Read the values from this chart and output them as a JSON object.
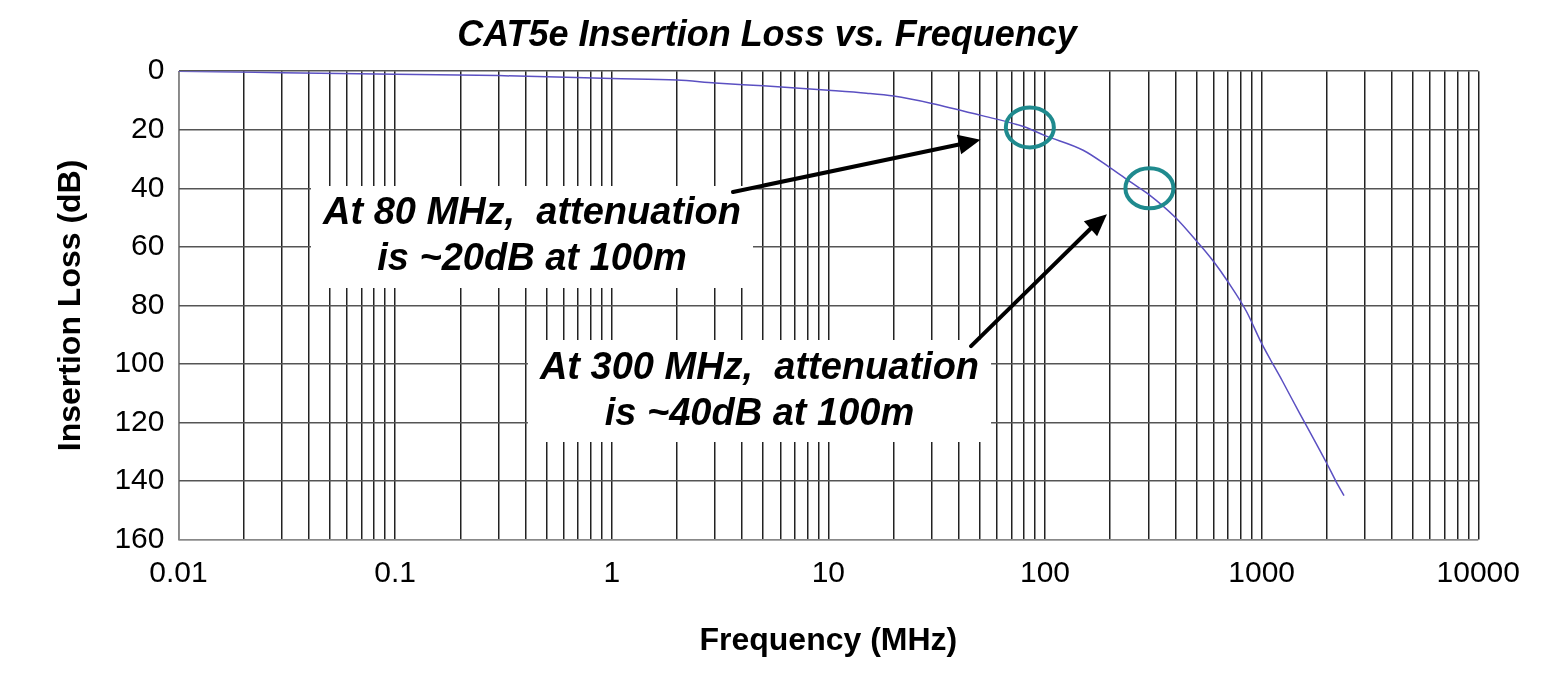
{
  "chart_data": {
    "type": "line",
    "title": "CAT5e Insertion Loss vs. Frequency",
    "xlabel": "Frequency (MHz)",
    "ylabel": "Insertion Loss (dB)",
    "x": [
      0.01,
      0.03,
      0.1,
      0.3,
      1,
      2,
      3,
      5,
      10,
      15,
      20,
      30,
      50,
      80,
      100,
      150,
      200,
      250,
      300,
      400,
      500,
      600,
      700,
      850,
      1000,
      1250,
      1500,
      1750,
      2000,
      2200,
      2400
    ],
    "series": [
      {
        "color": "#5b50c2",
        "values": [
          0,
          0.5,
          1,
          1.5,
          2.5,
          3,
          4,
          5,
          6.5,
          7.5,
          8.5,
          11,
          15,
          19,
          22,
          27,
          33,
          38,
          42,
          50,
          58,
          65,
          72,
          82,
          93,
          106,
          117,
          126,
          134,
          140,
          145
        ]
      }
    ],
    "log": "x",
    "xlim": [
      0.01,
      10000
    ],
    "ylim": [
      160,
      0
    ],
    "xticks": [
      0.01,
      {
        "value": 0.02,
        "label": null
      },
      {
        "value": 0.03,
        "label": null
      },
      {
        "value": 0.04,
        "label": null
      },
      {
        "value": 0.05,
        "label": null
      },
      {
        "value": 0.06,
        "label": null
      },
      {
        "value": 0.07,
        "label": null
      },
      {
        "value": 0.08,
        "label": null
      },
      {
        "value": 0.09,
        "label": null
      },
      0.1,
      {
        "value": 0.2,
        "label": null
      },
      {
        "value": 0.3,
        "label": null
      },
      {
        "value": 0.4,
        "label": null
      },
      {
        "value": 0.5,
        "label": null
      },
      {
        "value": 0.6,
        "label": null
      },
      {
        "value": 0.7,
        "label": null
      },
      {
        "value": 0.8,
        "label": null
      },
      {
        "value": 0.9,
        "label": null
      },
      1,
      {
        "value": 2,
        "label": null
      },
      {
        "value": 3,
        "label": null
      },
      {
        "value": 4,
        "label": null
      },
      {
        "value": 5,
        "label": null
      },
      {
        "value": 6,
        "label": null
      },
      {
        "value": 7,
        "label": null
      },
      {
        "value": 8,
        "label": null
      },
      {
        "value": 9,
        "label": null
      },
      10,
      {
        "value": 20,
        "label": null
      },
      {
        "value": 30,
        "label": null
      },
      {
        "value": 40,
        "label": null
      },
      {
        "value": 50,
        "label": null
      },
      {
        "value": 60,
        "label": null
      },
      {
        "value": 70,
        "label": null
      },
      {
        "value": 80,
        "label": null
      },
      {
        "value": 90,
        "label": null
      },
      100,
      {
        "value": 200,
        "label": null
      },
      {
        "value": 300,
        "label": null
      },
      {
        "value": 400,
        "label": null
      },
      {
        "value": 500,
        "label": null
      },
      {
        "value": 600,
        "label": null
      },
      {
        "value": 700,
        "label": null
      },
      {
        "value": 800,
        "label": null
      },
      {
        "value": 900,
        "label": null
      },
      1000,
      {
        "value": 2000,
        "label": null
      },
      {
        "value": 3000,
        "label": null
      },
      {
        "value": 4000,
        "label": null
      },
      {
        "value": 5000,
        "label": null
      },
      {
        "value": 6000,
        "label": null
      },
      {
        "value": 7000,
        "label": null
      },
      {
        "value": 8000,
        "label": null
      },
      {
        "value": 9000,
        "label": null
      },
      10000
    ],
    "yticks": [
      0,
      20,
      40,
      60,
      80,
      100,
      120,
      140,
      160
    ],
    "grid": true,
    "legend": false,
    "marker": "none",
    "line_style": "solid",
    "annotations": [
      "At 80 MHz,  attenuation is ~20dB at 100m",
      "At 300 MHz,  attenuation is ~40dB at 100m"
    ]
  }
}
